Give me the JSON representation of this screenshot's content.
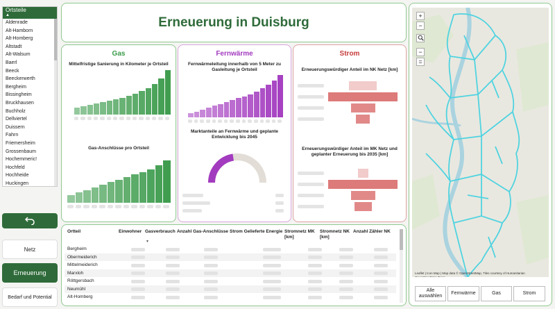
{
  "sidebar": {
    "header": "Ortsteile",
    "items": [
      "Aldenrade",
      "Alt-Hamborn",
      "Alt-Homberg",
      "Altstadt",
      "Alt-Walsum",
      "Baerl",
      "Beeck",
      "Beeckerwerth",
      "Bergheim",
      "Bissingheim",
      "Bruckhausen",
      "Buchholz",
      "Dellviertel",
      "Duissern",
      "Fahrn",
      "Friemersheim",
      "Grossenbaum",
      "Hochemmeric!",
      "Hochfeld",
      "Hochheide",
      "Huckingen"
    ]
  },
  "nav": {
    "netz": "Netz",
    "erneuerung": "Erneuerung",
    "bedarf": "Bedarf und Potential"
  },
  "title": "Erneuerung in Duisburg",
  "gas": {
    "title": "Gas",
    "chart1_title": "Mittelfristige Sanierung in Kilometer je Ortsteil",
    "chart2_title": "Gas-Anschlüsse pro Ortsteil",
    "color": "#3a9a4a",
    "chart1_values": [
      10,
      12,
      14,
      16,
      18,
      20,
      22,
      24,
      27,
      30,
      34,
      38,
      44,
      52,
      64
    ],
    "chart2_values": [
      12,
      16,
      20,
      24,
      28,
      32,
      36,
      40,
      44,
      48,
      52,
      58,
      66
    ]
  },
  "fernwaerme": {
    "title": "Fernwärme",
    "chart1_title": "Fernwärmeleitung innerhalb von 5 Meter zu Gasleitung je Ortsteil",
    "chart2_title": "Marktanteile an Fernwärme und geplante Entwicklung bis 2045",
    "color": "#a33bbf",
    "chart1_values": [
      4,
      6,
      8,
      10,
      12,
      14,
      16,
      18,
      20,
      22,
      24,
      27,
      30,
      34,
      38,
      44
    ],
    "gauge_fraction": 0.45
  },
  "strom": {
    "title": "Strom",
    "chart1_title": "Erneuerungswürdiger Anteil im NK Netz [km]",
    "chart2_title": "Erneuerungswürdiger Anteil im MK Netz und geplanter Erneuerung bis 2035 [km]",
    "color": "#d96b6b",
    "funnel1": [
      0.4,
      1.0,
      0.35,
      0.2
    ],
    "funnel2": [
      0.15,
      1.0,
      0.35,
      0.25
    ]
  },
  "table": {
    "headers": [
      "Ortteil",
      "Einwohner",
      "Gasverbrauch",
      "Anzahl Gas-Anschlüsse",
      "Strom Gelieferte Energie",
      "Stromnetz MK [km]",
      "Stromnetz NK [km]",
      "Anzahl Zähler NK"
    ],
    "rows": [
      "Bergheim",
      "Obermeiderich",
      "Mittelmeiderich",
      "Marxloh",
      "Röttgersbach",
      "Neumühl",
      "Alt-Homberg"
    ]
  },
  "map": {
    "zoom_in": "+",
    "zoom_out": "−",
    "attribution": "Leaflet | Icon Map | Map data © OpenStreetMap, Tiles courtesy of Humanitarian OpenStreetMap Team",
    "buttons": [
      "Alle auswählen",
      "Fernwärme",
      "Gas",
      "Strom"
    ],
    "outline_color": "#4fd3e0"
  }
}
